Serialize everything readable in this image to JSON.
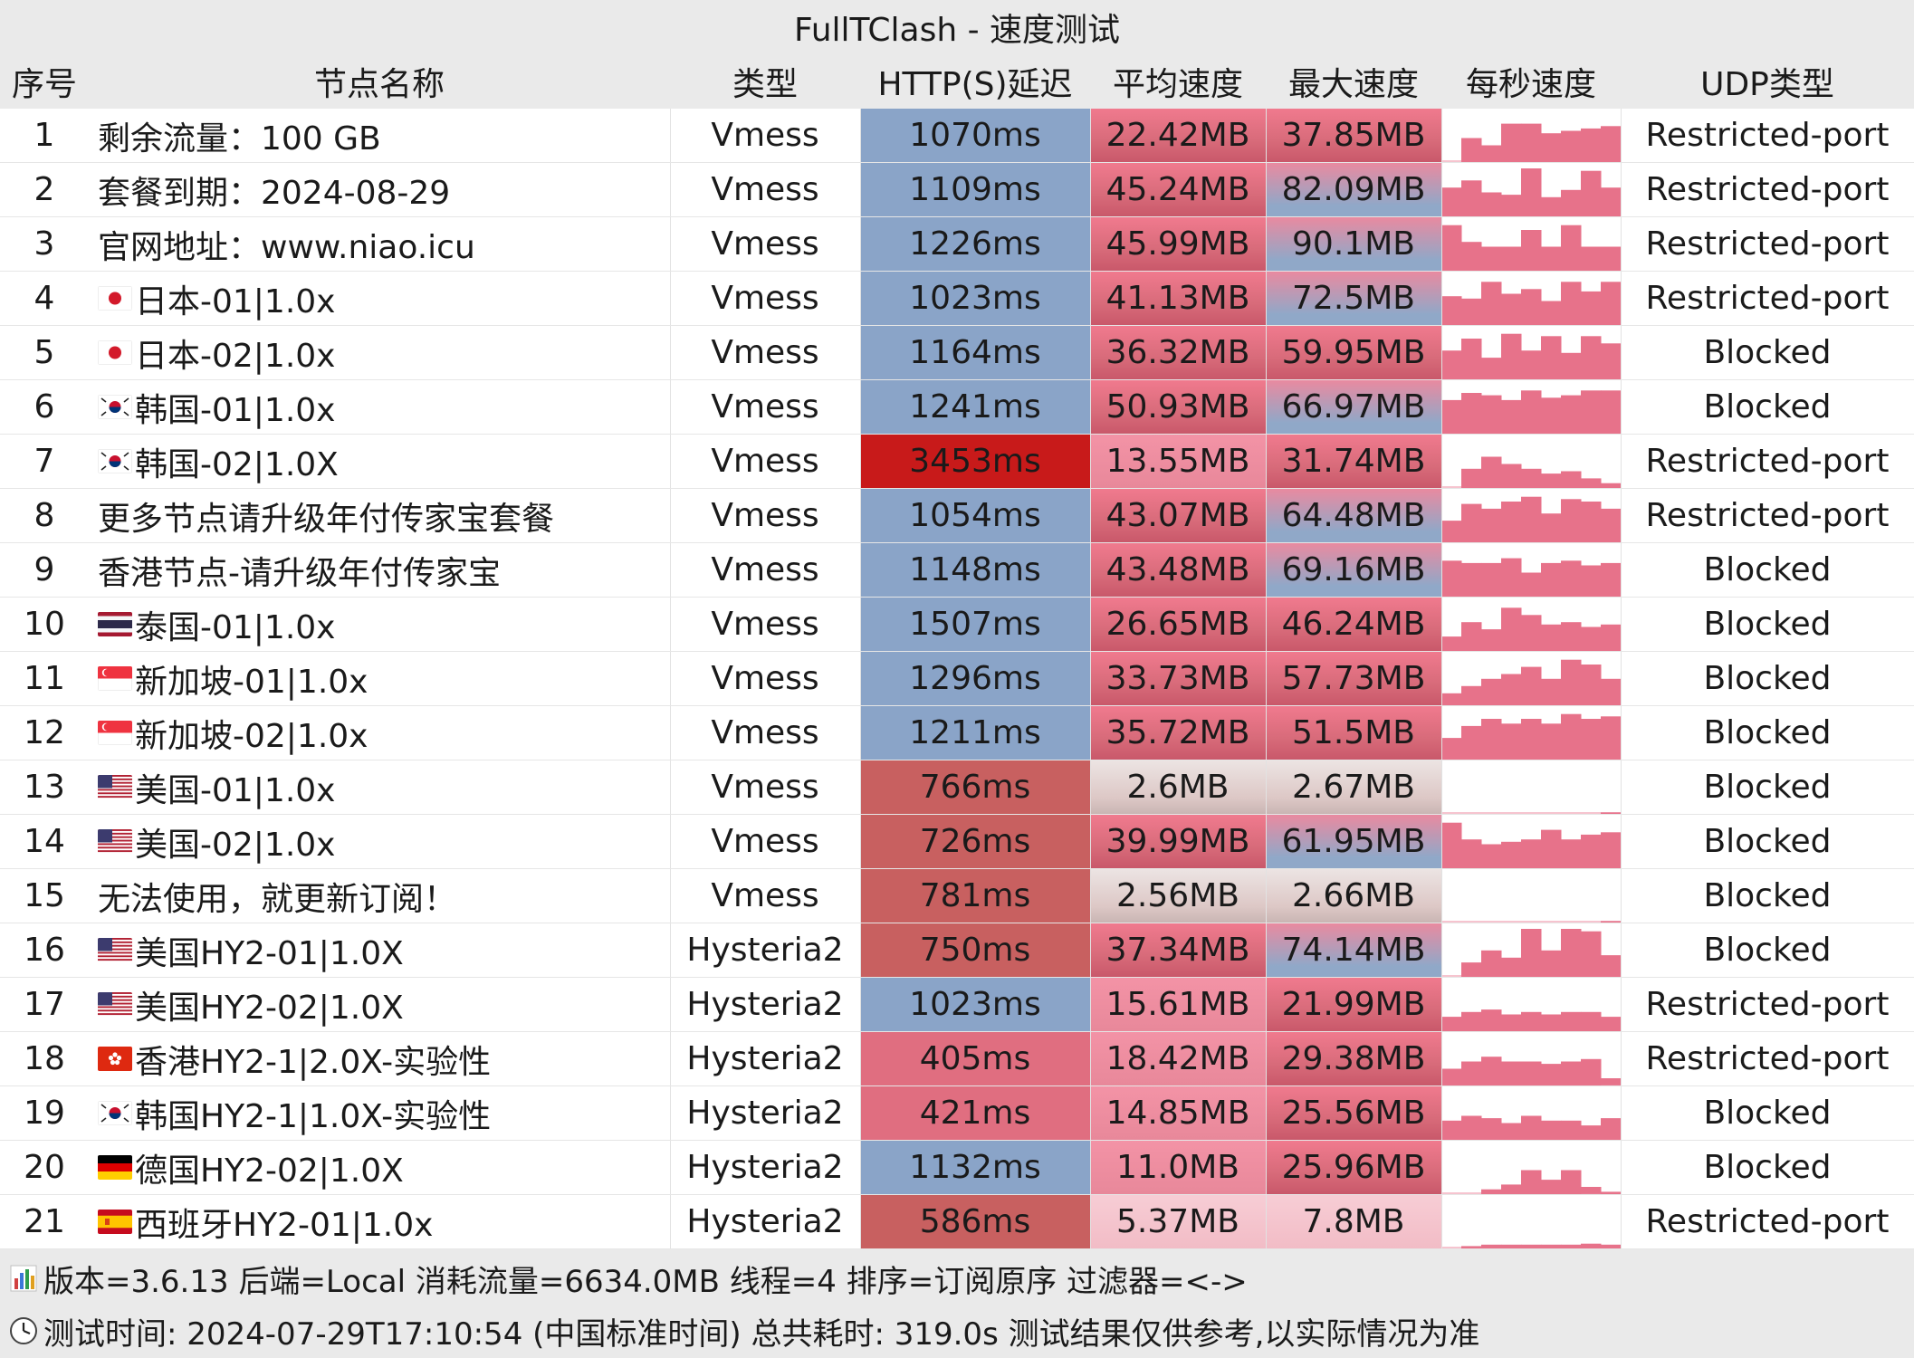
{
  "window_title": "FullTClash - 速度测试",
  "columns": [
    "序号",
    "节点名称",
    "类型",
    "HTTP(S)延迟",
    "平均速度",
    "最大速度",
    "每秒速度",
    "UDP类型"
  ],
  "colors": {
    "latency_normal": "#8aa4c8",
    "latency_high": "#c81a1a",
    "latency_low": "#c86060",
    "latency_fast": "#e06e80",
    "speed_strong": "#d86b7a",
    "speed_pink": "#e8889a",
    "speed_light": "#f2bcc6",
    "speed_faint": "#ddc8c6",
    "speed_blue": "#90a8c8",
    "spark_bar": "#e7728a"
  },
  "rows": [
    {
      "idx": "1",
      "flag": "",
      "name": "剩余流量：100 GB",
      "type": "Vmess",
      "latency": "1070ms",
      "lat_cls": "normal",
      "avg": "22.42MB",
      "avg_cls": "strong",
      "max": "37.85MB",
      "max_cls": "strong",
      "spark": [
        0,
        0.5,
        0.35,
        0.8,
        0.8,
        0.6,
        0.65,
        0.7,
        0.75
      ],
      "udp": "Restricted-port"
    },
    {
      "idx": "2",
      "flag": "",
      "name": "套餐到期：2024-08-29",
      "type": "Vmess",
      "latency": "1109ms",
      "lat_cls": "normal",
      "avg": "45.24MB",
      "avg_cls": "strong",
      "max": "82.09MB",
      "max_cls": "blue",
      "spark": [
        0.6,
        0.75,
        0.5,
        0.45,
        1.0,
        0.4,
        0.55,
        0.95,
        0.6
      ],
      "udp": "Restricted-port"
    },
    {
      "idx": "3",
      "flag": "",
      "name": "官网地址：www.niao.icu",
      "type": "Vmess",
      "latency": "1226ms",
      "lat_cls": "normal",
      "avg": "45.99MB",
      "avg_cls": "strong",
      "max": "90.1MB",
      "max_cls": "blue",
      "spark": [
        0.95,
        0.6,
        0.5,
        0.5,
        0.85,
        0.5,
        0.95,
        0.5,
        0.5
      ],
      "udp": "Restricted-port"
    },
    {
      "idx": "4",
      "flag": "jp",
      "name": "日本-01|1.0x",
      "type": "Vmess",
      "latency": "1023ms",
      "lat_cls": "normal",
      "avg": "41.13MB",
      "avg_cls": "strong",
      "max": "72.5MB",
      "max_cls": "blue",
      "spark": [
        0.6,
        0.55,
        0.9,
        0.65,
        0.75,
        0.5,
        0.9,
        0.7,
        0.9
      ],
      "udp": "Restricted-port"
    },
    {
      "idx": "5",
      "flag": "jp",
      "name": "日本-02|1.0x",
      "type": "Vmess",
      "latency": "1164ms",
      "lat_cls": "normal",
      "avg": "36.32MB",
      "avg_cls": "strong",
      "max": "59.95MB",
      "max_cls": "strong",
      "spark": [
        0.6,
        0.85,
        0.45,
        0.95,
        0.6,
        0.9,
        0.55,
        0.9,
        0.75
      ],
      "udp": "Blocked"
    },
    {
      "idx": "6",
      "flag": "kr",
      "name": "韩国-01|1.0x",
      "type": "Vmess",
      "latency": "1241ms",
      "lat_cls": "normal",
      "avg": "50.93MB",
      "avg_cls": "strong",
      "max": "66.97MB",
      "max_cls": "blue",
      "spark": [
        0.7,
        0.85,
        0.8,
        0.7,
        0.9,
        0.75,
        0.8,
        0.9,
        0.9
      ],
      "udp": "Blocked"
    },
    {
      "idx": "7",
      "flag": "kr",
      "name": "韩国-02|1.0X",
      "type": "Vmess",
      "latency": "3453ms",
      "lat_cls": "high",
      "avg": "13.55MB",
      "avg_cls": "pink",
      "max": "31.74MB",
      "max_cls": "strong",
      "spark": [
        0,
        0.4,
        0.65,
        0.5,
        0.4,
        0.3,
        0.35,
        0.2,
        0.1
      ],
      "udp": "Restricted-port"
    },
    {
      "idx": "8",
      "flag": "",
      "name": "更多节点请升级年付传家宝套餐",
      "type": "Vmess",
      "latency": "1054ms",
      "lat_cls": "normal",
      "avg": "43.07MB",
      "avg_cls": "strong",
      "max": "64.48MB",
      "max_cls": "blue",
      "spark": [
        0.45,
        0.8,
        0.7,
        0.85,
        0.95,
        0.6,
        0.9,
        0.85,
        0.7
      ],
      "udp": "Restricted-port"
    },
    {
      "idx": "9",
      "flag": "",
      "name": "香港节点-请升级年付传家宝",
      "type": "Vmess",
      "latency": "1148ms",
      "lat_cls": "normal",
      "avg": "43.48MB",
      "avg_cls": "strong",
      "max": "69.16MB",
      "max_cls": "blue",
      "spark": [
        0.75,
        0.7,
        0.7,
        0.8,
        0.5,
        0.7,
        0.75,
        0.65,
        0.7
      ],
      "udp": "Blocked"
    },
    {
      "idx": "10",
      "flag": "th",
      "name": "泰国-01|1.0x",
      "type": "Vmess",
      "latency": "1507ms",
      "lat_cls": "normal",
      "avg": "26.65MB",
      "avg_cls": "strong",
      "max": "46.24MB",
      "max_cls": "strong",
      "spark": [
        0.3,
        0.6,
        0.45,
        0.9,
        0.75,
        0.55,
        0.6,
        0.5,
        0.55
      ],
      "udp": "Blocked"
    },
    {
      "idx": "11",
      "flag": "sg",
      "name": "新加坡-01|1.0x",
      "type": "Vmess",
      "latency": "1296ms",
      "lat_cls": "normal",
      "avg": "33.73MB",
      "avg_cls": "strong",
      "max": "57.73MB",
      "max_cls": "strong",
      "spark": [
        0.25,
        0.4,
        0.55,
        0.65,
        0.8,
        0.55,
        0.95,
        0.85,
        0.55
      ],
      "udp": "Blocked"
    },
    {
      "idx": "12",
      "flag": "sg",
      "name": "新加坡-02|1.0x",
      "type": "Vmess",
      "latency": "1211ms",
      "lat_cls": "normal",
      "avg": "35.72MB",
      "avg_cls": "strong",
      "max": "51.5MB",
      "max_cls": "strong",
      "spark": [
        0.45,
        0.7,
        0.85,
        0.75,
        0.85,
        0.75,
        0.95,
        0.85,
        0.9
      ],
      "udp": "Blocked"
    },
    {
      "idx": "13",
      "flag": "us",
      "name": "美国-01|1.0x",
      "type": "Vmess",
      "latency": "766ms",
      "lat_cls": "low",
      "avg": "2.6MB",
      "avg_cls": "faint",
      "max": "2.67MB",
      "max_cls": "faint",
      "spark": [
        0,
        0,
        0,
        0,
        0,
        0,
        0,
        0,
        0.03
      ],
      "udp": "Blocked"
    },
    {
      "idx": "14",
      "flag": "us",
      "name": "美国-02|1.0x",
      "type": "Vmess",
      "latency": "726ms",
      "lat_cls": "low",
      "avg": "39.99MB",
      "avg_cls": "strong",
      "max": "61.95MB",
      "max_cls": "blue",
      "spark": [
        0.95,
        0.6,
        0.5,
        0.55,
        0.6,
        0.8,
        0.6,
        0.7,
        0.75
      ],
      "udp": "Blocked"
    },
    {
      "idx": "15",
      "flag": "",
      "name": "无法使用，就更新订阅！",
      "type": "Vmess",
      "latency": "781ms",
      "lat_cls": "low",
      "avg": "2.56MB",
      "avg_cls": "faint",
      "max": "2.66MB",
      "max_cls": "faint",
      "spark": [
        0,
        0,
        0,
        0,
        0,
        0,
        0,
        0,
        0.03
      ],
      "udp": "Blocked"
    },
    {
      "idx": "16",
      "flag": "us",
      "name": "美国HY2-01|1.0X",
      "type": "Hysteria2",
      "latency": "750ms",
      "lat_cls": "low",
      "avg": "37.34MB",
      "avg_cls": "strong",
      "max": "74.14MB",
      "max_cls": "blue",
      "spark": [
        0,
        0.3,
        0.55,
        0.4,
        1.0,
        0.55,
        1.0,
        0.95,
        0.45
      ],
      "udp": "Blocked"
    },
    {
      "idx": "17",
      "flag": "us",
      "name": "美国HY2-02|1.0X",
      "type": "Hysteria2",
      "latency": "1023ms",
      "lat_cls": "normal",
      "avg": "15.61MB",
      "avg_cls": "pink",
      "max": "21.99MB",
      "max_cls": "strong",
      "spark": [
        0.3,
        0.4,
        0.45,
        0.35,
        0.4,
        0.35,
        0.4,
        0.4,
        0.3
      ],
      "udp": "Restricted-port"
    },
    {
      "idx": "18",
      "flag": "hk",
      "name": "香港HY2-1|2.0X-实验性",
      "type": "Hysteria2",
      "latency": "405ms",
      "lat_cls": "fast",
      "avg": "18.42MB",
      "avg_cls": "pink",
      "max": "29.38MB",
      "max_cls": "strong",
      "spark": [
        0.35,
        0.5,
        0.6,
        0.5,
        0.5,
        0.45,
        0.5,
        0.55,
        0.15
      ],
      "udp": "Restricted-port"
    },
    {
      "idx": "19",
      "flag": "kr",
      "name": "韩国HY2-1|1.0X-实验性",
      "type": "Hysteria2",
      "latency": "421ms",
      "lat_cls": "fast",
      "avg": "14.85MB",
      "avg_cls": "pink",
      "max": "25.56MB",
      "max_cls": "strong",
      "spark": [
        0.4,
        0.5,
        0.45,
        0.35,
        0.5,
        0.4,
        0.4,
        0.3,
        0.45
      ],
      "udp": "Blocked"
    },
    {
      "idx": "20",
      "flag": "de",
      "name": "德国HY2-02|1.0X",
      "type": "Hysteria2",
      "latency": "1132ms",
      "lat_cls": "normal",
      "avg": "11.0MB",
      "avg_cls": "pink",
      "max": "25.96MB",
      "max_cls": "strong",
      "spark": [
        0,
        0,
        0.1,
        0.2,
        0.5,
        0.3,
        0.5,
        0.15,
        0.05
      ],
      "udp": "Blocked"
    },
    {
      "idx": "21",
      "flag": "es",
      "name": "西班牙HY2-01|1.0x",
      "type": "Hysteria2",
      "latency": "586ms",
      "lat_cls": "low",
      "avg": "5.37MB",
      "avg_cls": "light",
      "max": "7.8MB",
      "max_cls": "light",
      "spark": [
        0,
        0.05,
        0.08,
        0.08,
        0.08,
        0.08,
        0.08,
        0.1,
        0.08
      ],
      "udp": "Restricted-port"
    }
  ],
  "footer": {
    "line1": "版本=3.6.13  后端=Local  消耗流量=6634.0MB   线程=4  排序=订阅原序  过滤器=<->",
    "line2": "测试时间: 2024-07-29T17:10:54 (中国标准时间) 总共耗时: 319.0s 测试结果仅供参考,以实际情况为准",
    "icon1": "bar-chart-icon",
    "icon2": "clock-icon"
  }
}
